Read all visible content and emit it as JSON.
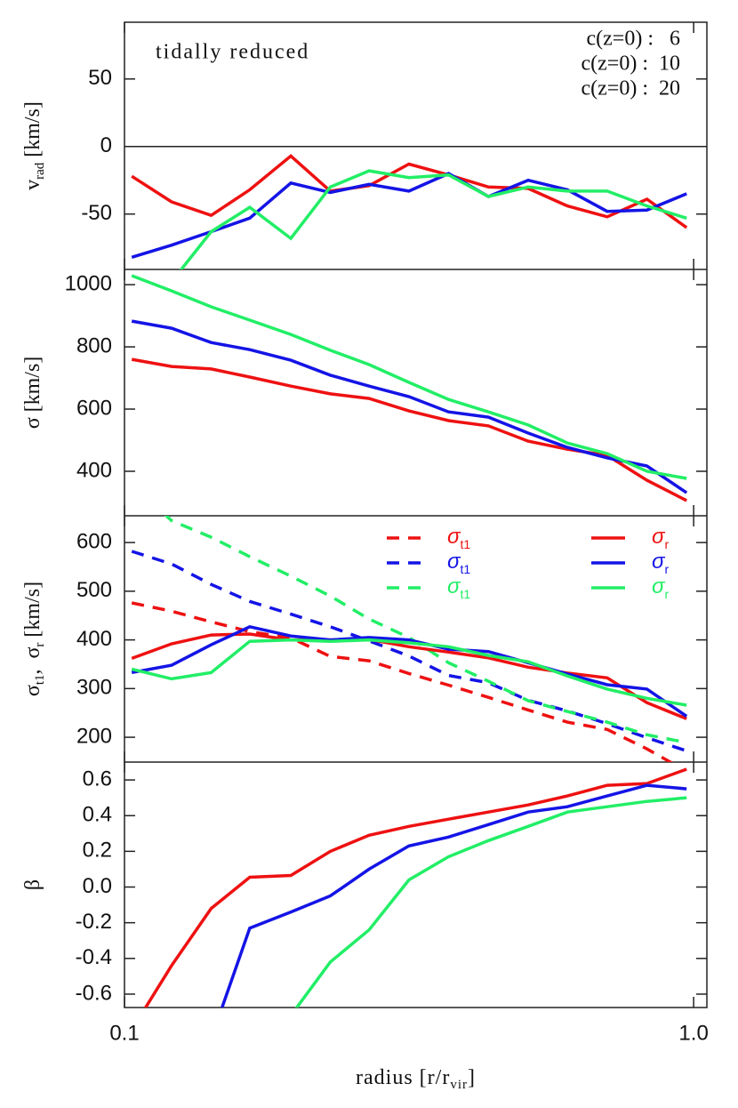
{
  "chart_data": [
    {
      "type": "line",
      "annotation": "tidally reduced",
      "ylabel": [
        {
          "text": "v"
        },
        {
          "text": "rad",
          "sub": true
        },
        {
          "text": " [km/s]"
        }
      ],
      "x": [
        0.103,
        0.121,
        0.142,
        0.166,
        0.196,
        0.23,
        0.269,
        0.316,
        0.371,
        0.436,
        0.512,
        0.6,
        0.705,
        0.828,
        0.972
      ],
      "xlim": [
        0.1,
        1.055
      ],
      "xscale": "log",
      "ylim": [
        -91,
        92
      ],
      "yticks": [
        -50,
        0,
        50
      ],
      "hlines": [
        0
      ],
      "legend": "upper right",
      "series": [
        {
          "name": "c(z=0) :   6",
          "color": "#ee1111",
          "style": "solid",
          "values": [
            -22,
            -41,
            -51,
            -32,
            -7,
            -33,
            -29,
            -13,
            -21,
            -30,
            -31,
            -44,
            -52,
            -39,
            -60
          ]
        },
        {
          "name": "c(z=0) :  10",
          "color": "#1414e6",
          "style": "solid",
          "values": [
            -82,
            -73,
            -63,
            -53,
            -27,
            -34,
            -28,
            -33,
            -20,
            -37,
            -25,
            -32,
            -48,
            -47,
            -35
          ]
        },
        {
          "name": "c(z=0) :  20",
          "color": "#22ee66",
          "style": "solid",
          "values": [
            null,
            -100,
            -63,
            -45,
            -68,
            -30,
            -18,
            -23,
            -21,
            -37,
            -30,
            -33,
            -33,
            -44,
            -53
          ]
        }
      ]
    },
    {
      "type": "line",
      "ylabel": [
        {
          "text": "σ [km/s]"
        }
      ],
      "x": [
        0.103,
        0.121,
        0.142,
        0.166,
        0.196,
        0.23,
        0.269,
        0.316,
        0.371,
        0.436,
        0.512,
        0.6,
        0.705,
        0.828,
        0.972
      ],
      "xlim": [
        0.1,
        1.055
      ],
      "xscale": "log",
      "ylim": [
        257,
        1049
      ],
      "yticks": [
        400,
        600,
        800,
        1000
      ],
      "series": [
        {
          "color": "#ee1111",
          "style": "solid",
          "values": [
            760,
            737,
            729,
            703,
            674,
            649,
            634,
            594,
            563,
            546,
            497,
            471,
            451,
            371,
            306
          ]
        },
        {
          "color": "#1414e6",
          "style": "solid",
          "values": [
            883,
            860,
            814,
            791,
            757,
            709,
            674,
            640,
            591,
            574,
            523,
            477,
            443,
            417,
            331
          ]
        },
        {
          "color": "#22ee66",
          "style": "solid",
          "values": [
            1029,
            980,
            929,
            886,
            840,
            789,
            743,
            686,
            631,
            591,
            549,
            491,
            457,
            400,
            377
          ]
        }
      ]
    },
    {
      "type": "line",
      "ylabel": [
        {
          "text": "σ"
        },
        {
          "text": "t1",
          "sub": true
        },
        {
          "text": ",  σ"
        },
        {
          "text": "r",
          "sub": true
        },
        {
          "text": " [km/s]"
        }
      ],
      "x": [
        0.103,
        0.121,
        0.142,
        0.166,
        0.196,
        0.23,
        0.269,
        0.316,
        0.371,
        0.436,
        0.512,
        0.6,
        0.705,
        0.828,
        0.972
      ],
      "xlim": [
        0.1,
        1.055
      ],
      "xscale": "log",
      "ylim": [
        149,
        655
      ],
      "yticks": [
        200,
        300,
        400,
        500,
        600
      ],
      "legend": "upper right",
      "series": [
        {
          "name": "σ",
          "subscript": "t1",
          "color": "#ee1111",
          "style": "dashed",
          "values": [
            476,
            459,
            437,
            417,
            404,
            366,
            357,
            331,
            307,
            282,
            256,
            231,
            216,
            176,
            130
          ]
        },
        {
          "name": "σ",
          "subscript": "t1",
          "color": "#1414e6",
          "style": "dashed",
          "values": [
            582,
            556,
            514,
            479,
            453,
            427,
            398,
            367,
            327,
            312,
            276,
            254,
            228,
            199,
            172
          ]
        },
        {
          "name": "σ",
          "subscript": "t1",
          "color": "#22ee66",
          "style": "dashed",
          "values": [
            720,
            645,
            611,
            571,
            531,
            490,
            443,
            405,
            353,
            315,
            275,
            253,
            231,
            205,
            189
          ]
        },
        {
          "name": "σ",
          "subscript": "r",
          "color": "#ee1111",
          "style": "solid",
          "values": [
            362,
            392,
            410,
            412,
            400,
            400,
            401,
            386,
            375,
            363,
            344,
            332,
            322,
            271,
            238
          ]
        },
        {
          "name": "σ",
          "subscript": "r",
          "color": "#1414e6",
          "style": "solid",
          "values": [
            333,
            348,
            390,
            427,
            408,
            400,
            405,
            400,
            381,
            376,
            353,
            330,
            308,
            299,
            243
          ]
        },
        {
          "name": "σ",
          "subscript": "r",
          "color": "#22ee66",
          "style": "solid",
          "values": [
            340,
            320,
            333,
            397,
            400,
            397,
            400,
            394,
            386,
            368,
            355,
            326,
            299,
            280,
            266
          ]
        }
      ]
    },
    {
      "type": "line",
      "ylabel": [
        {
          "text": "β"
        }
      ],
      "xlabel": [
        {
          "text": "radius [r/r"
        },
        {
          "text": "vir",
          "sub": true
        },
        {
          "text": "]"
        }
      ],
      "x": [
        0.103,
        0.121,
        0.142,
        0.166,
        0.196,
        0.23,
        0.269,
        0.316,
        0.371,
        0.436,
        0.512,
        0.6,
        0.705,
        0.828,
        0.972
      ],
      "xlim": [
        0.1,
        1.055
      ],
      "xscale": "log",
      "xticks": [
        0.1,
        {
          "value": 1,
          "label": "1.0"
        }
      ],
      "ylim": [
        -0.675,
        0.7
      ],
      "yticks": [
        -0.6,
        -0.4,
        -0.2,
        {
          "value": 0,
          "label": "0.0"
        },
        0.2,
        0.4,
        0.6
      ],
      "series": [
        {
          "color": "#ee1111",
          "style": "solid",
          "values": [
            -0.8,
            -0.44,
            -0.12,
            0.055,
            0.065,
            0.2,
            0.29,
            0.34,
            0.38,
            0.42,
            0.46,
            0.51,
            0.57,
            0.58,
            0.66
          ]
        },
        {
          "color": "#1414e6",
          "style": "solid",
          "values": [
            null,
            null,
            -0.85,
            -0.23,
            -0.14,
            -0.05,
            0.1,
            0.23,
            0.28,
            0.35,
            0.42,
            0.45,
            0.51,
            0.57,
            0.55
          ]
        },
        {
          "color": "#22ee66",
          "style": "solid",
          "values": [
            null,
            null,
            null,
            null,
            -0.72,
            -0.42,
            -0.24,
            0.04,
            0.17,
            0.26,
            0.34,
            0.42,
            0.45,
            0.48,
            0.5
          ]
        }
      ]
    }
  ]
}
